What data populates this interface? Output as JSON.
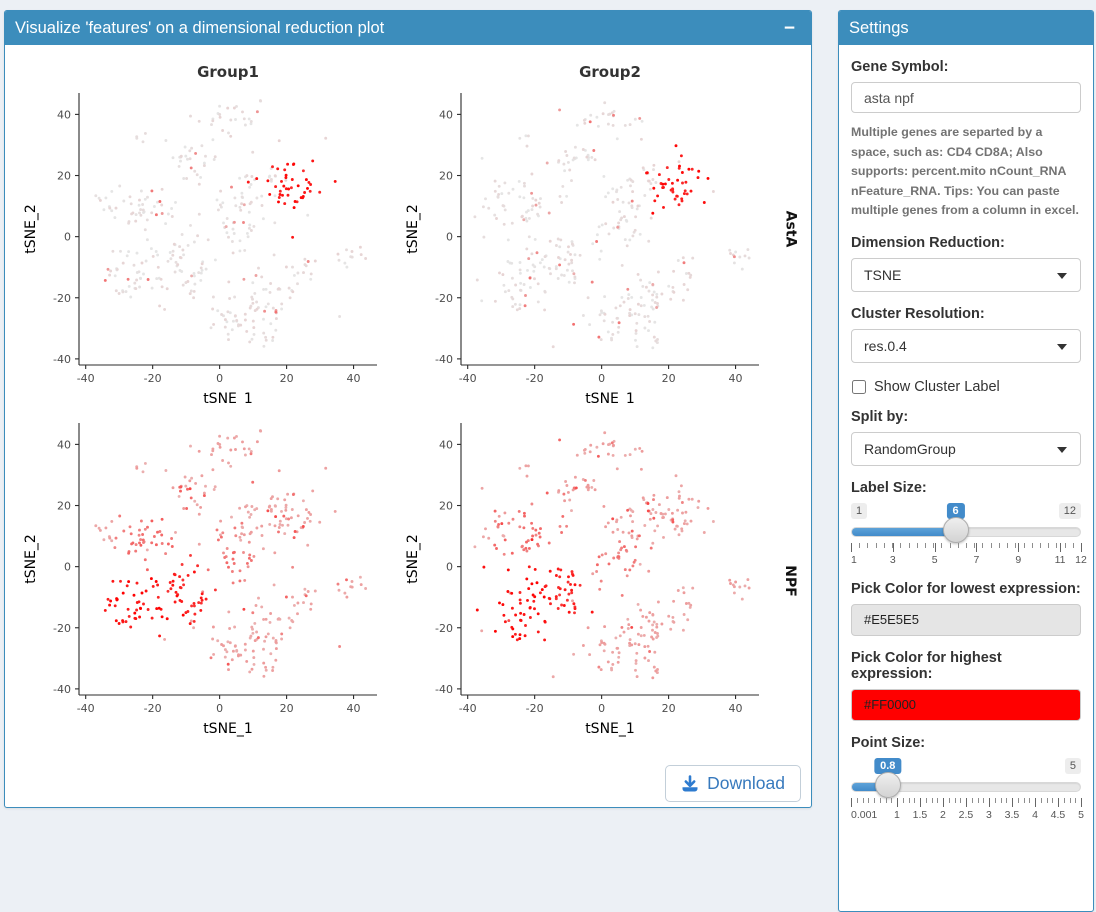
{
  "page": {
    "background": "#ecf0f5",
    "accent": "#3c8dbc"
  },
  "main_panel": {
    "title": "Visualize 'features' on a dimensional reduction plot",
    "collapse_icon": "−",
    "download_label": "Download"
  },
  "settings": {
    "title": "Settings",
    "gene_symbol": {
      "label": "Gene Symbol:",
      "value": "asta npf",
      "help": "Multiple genes are separted by a space, such as: CD4 CD8A; Also supports: percent.mito nCount_RNA nFeature_RNA. Tips: You can paste multiple genes from a column in excel."
    },
    "dimension_reduction": {
      "label": "Dimension Reduction:",
      "value": "TSNE"
    },
    "cluster_resolution": {
      "label": "Cluster Resolution:",
      "value": "res.0.4"
    },
    "show_cluster_label": {
      "label": "Show Cluster Label",
      "checked": false
    },
    "split_by": {
      "label": "Split by:",
      "value": "RandomGroup"
    },
    "label_size": {
      "label": "Label Size:",
      "min": 1,
      "max": 12,
      "value": 6,
      "min_label": "1",
      "max_label": "12",
      "value_label": "6",
      "grid_values": [
        1,
        3,
        5,
        7,
        9,
        11,
        12
      ],
      "grid_labels": [
        "1",
        "3",
        "5",
        "7",
        "9",
        "11",
        "12"
      ],
      "grid_minor_ticks": 28
    },
    "low_color": {
      "label": "Pick Color for lowest expression:",
      "value": "#E5E5E5"
    },
    "high_color": {
      "label": "Pick Color for highest expression:",
      "value": "#FF0000"
    },
    "point_size": {
      "label": "Point Size:",
      "min": 0.001,
      "max": 5,
      "value": 0.8,
      "min_label": null,
      "max_label": "5",
      "value_label": "0.8",
      "grid_values": [
        0.001,
        1,
        1.5,
        2,
        2.5,
        3,
        3.5,
        4,
        4.5,
        5
      ],
      "grid_labels": [
        "0.001",
        "1",
        "1.5",
        "2",
        "2.5",
        "3",
        "3.5",
        "4",
        "4.5",
        "5"
      ],
      "grid_minor_ticks": 40
    }
  },
  "chart_data": {
    "type": "scatter",
    "description": "Feature expression on tSNE embedding, split by RandomGroup (columns) for genes AstA and NPF (rows). Point color encodes expression from low (#E5E5E5) to high (#FF0000).",
    "columns": [
      "Group1",
      "Group2"
    ],
    "rows": [
      "AstA",
      "NPF"
    ],
    "xlabel": "tSNE_1",
    "ylabel": "tSNE_2",
    "xlim": [
      -42,
      47
    ],
    "ylim": [
      -42,
      47
    ],
    "xticks": [
      -40,
      -20,
      0,
      20,
      40
    ],
    "yticks": [
      -40,
      -20,
      0,
      20,
      40
    ],
    "low_color": "#E5E5E5",
    "high_color": "#FF0000",
    "point_radius": 1.45,
    "seeds": [
      11,
      23
    ],
    "clusters": [
      {
        "id": "c1",
        "cx": 2,
        "cy": 39,
        "sx": 5,
        "sy": 2.8,
        "n": 26
      },
      {
        "id": "c2",
        "cx": -25,
        "cy": 32,
        "sx": 1.6,
        "sy": 1.6,
        "n": 4
      },
      {
        "id": "c3",
        "cx": -8,
        "cy": 25,
        "sx": 3.2,
        "sy": 3.2,
        "n": 24
      },
      {
        "id": "c4",
        "cx": -22,
        "cy": 11,
        "sx": 4.6,
        "sy": 4.4,
        "n": 38
      },
      {
        "id": "c5",
        "cx": -33,
        "cy": 12,
        "sx": 2.2,
        "sy": 2.6,
        "n": 10
      },
      {
        "id": "c6",
        "cx": -24,
        "cy": -13,
        "sx": 4.6,
        "sy": 6,
        "n": 52
      },
      {
        "id": "c7",
        "cx": -11,
        "cy": -8,
        "sx": 4,
        "sy": 4.6,
        "n": 36
      },
      {
        "id": "c8",
        "cx": 4,
        "cy": 2,
        "sx": 4,
        "sy": 4.4,
        "n": 30
      },
      {
        "id": "c9",
        "cx": 9,
        "cy": 13,
        "sx": 3.6,
        "sy": 3.2,
        "n": 20
      },
      {
        "id": "c10",
        "cx": 15,
        "cy": 20,
        "sx": 2.6,
        "sy": 2.2,
        "n": 10
      },
      {
        "id": "c11",
        "cx": 22,
        "cy": 17,
        "sx": 4.4,
        "sy": 4.4,
        "n": 44
      },
      {
        "id": "c12",
        "cx": 40,
        "cy": -6,
        "sx": 2.4,
        "sy": 2,
        "n": 11
      },
      {
        "id": "c13",
        "cx": 4,
        "cy": -27,
        "sx": 3.8,
        "sy": 4.4,
        "n": 32
      },
      {
        "id": "c14",
        "cx": 14,
        "cy": -20,
        "sx": 4.4,
        "sy": 4.4,
        "n": 36
      },
      {
        "id": "c15",
        "cx": 25,
        "cy": -12,
        "sx": 2.6,
        "sy": 3,
        "n": 13
      },
      {
        "id": "c16",
        "cx": 13,
        "cy": -33,
        "sx": 3,
        "sy": 1.8,
        "n": 9
      },
      {
        "id": "c17",
        "cx": 0,
        "cy": 0,
        "sx": 26,
        "sy": 24,
        "n": 22
      }
    ],
    "genes": [
      {
        "name": "AstA",
        "base": 0.03,
        "sparse_prob": 0.05,
        "sparse_level": 0.38,
        "cluster_levels": {
          "c11": 0.9
        }
      },
      {
        "name": "NPF",
        "base": 0.28,
        "sparse_prob": 0.12,
        "sparse_level": 0.55,
        "cluster_levels": {
          "c6": 0.92,
          "c7": 0.84,
          "c4": 0.5,
          "c8": 0.45
        }
      }
    ]
  }
}
